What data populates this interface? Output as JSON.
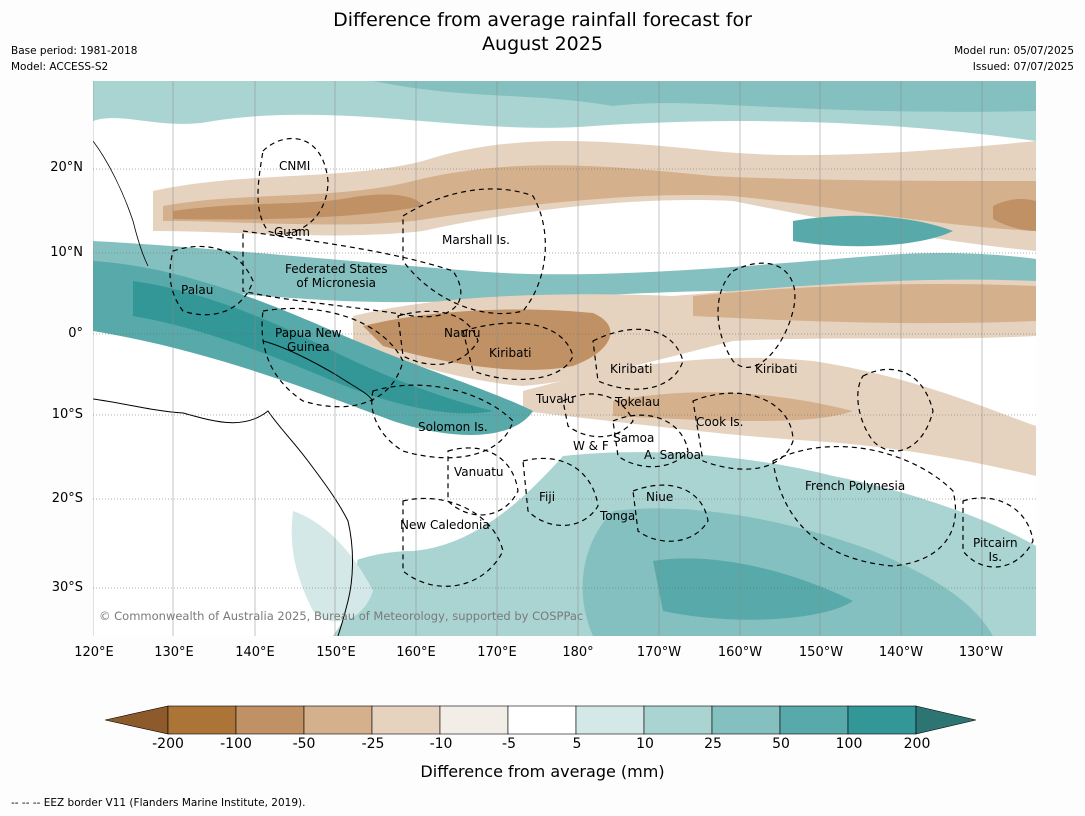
{
  "title_line1": "Difference from average rainfall forecast for",
  "title_line2": "August 2025",
  "meta_left": {
    "base_period": "Base period: 1981-2018",
    "model": "Model: ACCESS-S2"
  },
  "meta_right": {
    "model_run": "Model run: 05/07/2025",
    "issued": "Issued: 07/07/2025"
  },
  "map": {
    "lat_labels": [
      "20°N",
      "10°N",
      "0°",
      "10°S",
      "20°S",
      "30°S"
    ],
    "lon_labels": [
      "120°E",
      "130°E",
      "140°E",
      "150°E",
      "160°E",
      "170°E",
      "180°",
      "170°W",
      "160°W",
      "150°W",
      "140°W",
      "130°W"
    ],
    "regions": {
      "cnmi": "CNMI",
      "guam": "Guam",
      "marshall": "Marshall Is.",
      "fsm1": "Federated States",
      "fsm2": "of Micronesia",
      "palau": "Palau",
      "png1": "Papua New",
      "png2": "Guinea",
      "nauru": "Nauru",
      "kiribati_w": "Kiribati",
      "kiribati_c": "Kiribati",
      "kiribati_e": "Kiribati",
      "tuvalu": "Tuvalu",
      "tokelau": "Tokelau",
      "cook": "Cook Is.",
      "solomon": "Solomon Is.",
      "wf": "W & F",
      "samoa": "Samoa",
      "asamoa": "A. Samoa",
      "vanuatu": "Vanuatu",
      "fiji": "Fiji",
      "niue": "Niue",
      "tonga": "Tonga",
      "frpoly": "French Polynesia",
      "pitcairn1": "Pitcairn",
      "pitcairn2": "Is.",
      "newcal": "New Caledonia"
    },
    "credit": "© Commonwealth of Australia 2025, Bureau of Meteorology, supported by COSPPac"
  },
  "colorbar": {
    "ticks": [
      "-200",
      "-100",
      "-50",
      "-25",
      "-10",
      "-5",
      "5",
      "10",
      "25",
      "50",
      "100",
      "200"
    ],
    "colors": [
      "#8c5a2b",
      "#ad7438",
      "#c09165",
      "#d5b08c",
      "#e6d3bf",
      "#f2ede6",
      "#ffffff",
      "#d4e9e7",
      "#aad4d2",
      "#84c0bf",
      "#57aaa9",
      "#339797",
      "#2c7573"
    ],
    "label": "Difference from average (mm)"
  },
  "footer": "-- -- -- EEZ border V11 (Flanders Marine Institute, 2019)."
}
